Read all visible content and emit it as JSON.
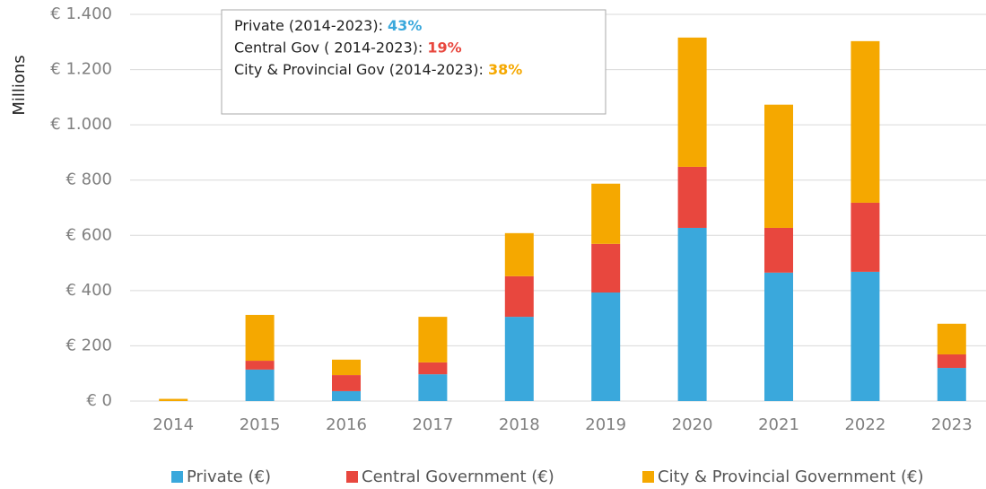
{
  "chart_data": {
    "type": "stacked_bar",
    "y_axis_label": "Millions",
    "categories": [
      "2014",
      "2015",
      "2016",
      "2017",
      "2018",
      "2019",
      "2020",
      "2021",
      "2022",
      "2023"
    ],
    "series": [
      {
        "name": "Private (€)",
        "color": "#3aa8dc",
        "values": [
          0,
          114,
          36,
          97,
          305,
          393,
          627,
          465,
          468,
          120
        ]
      },
      {
        "name": "Central Government (€)",
        "color": "#e8473e",
        "values": [
          0,
          32,
          58,
          43,
          147,
          176,
          221,
          162,
          250,
          49
        ]
      },
      {
        "name": "City & Provincial Government (€)",
        "color": "#f5a800",
        "values": [
          8,
          166,
          56,
          165,
          156,
          218,
          468,
          446,
          585,
          111
        ]
      }
    ],
    "ylim": [
      0,
      1400
    ],
    "yticks": [
      {
        "value": 0,
        "label": "€ 0"
      },
      {
        "value": 200,
        "label": "€ 200"
      },
      {
        "value": 400,
        "label": "€ 400"
      },
      {
        "value": 600,
        "label": "€ 600"
      },
      {
        "value": 800,
        "label": "€ 800"
      },
      {
        "value": 1000,
        "label": "€ 1.000"
      },
      {
        "value": 1200,
        "label": "€ 1.200"
      },
      {
        "value": 1400,
        "label": "€ 1.400"
      }
    ],
    "grid": true,
    "legend": "bottom",
    "annotations": [
      {
        "text": "Private (2014-2023): ",
        "percent": "43%",
        "color": "#3aa8dc"
      },
      {
        "text": "Central Gov ( 2014-2023): ",
        "percent": "19%",
        "color": "#e8473e"
      },
      {
        "text": "City & Provincial Gov (2014-2023): ",
        "percent": "38%",
        "color": "#f5a800"
      }
    ]
  }
}
